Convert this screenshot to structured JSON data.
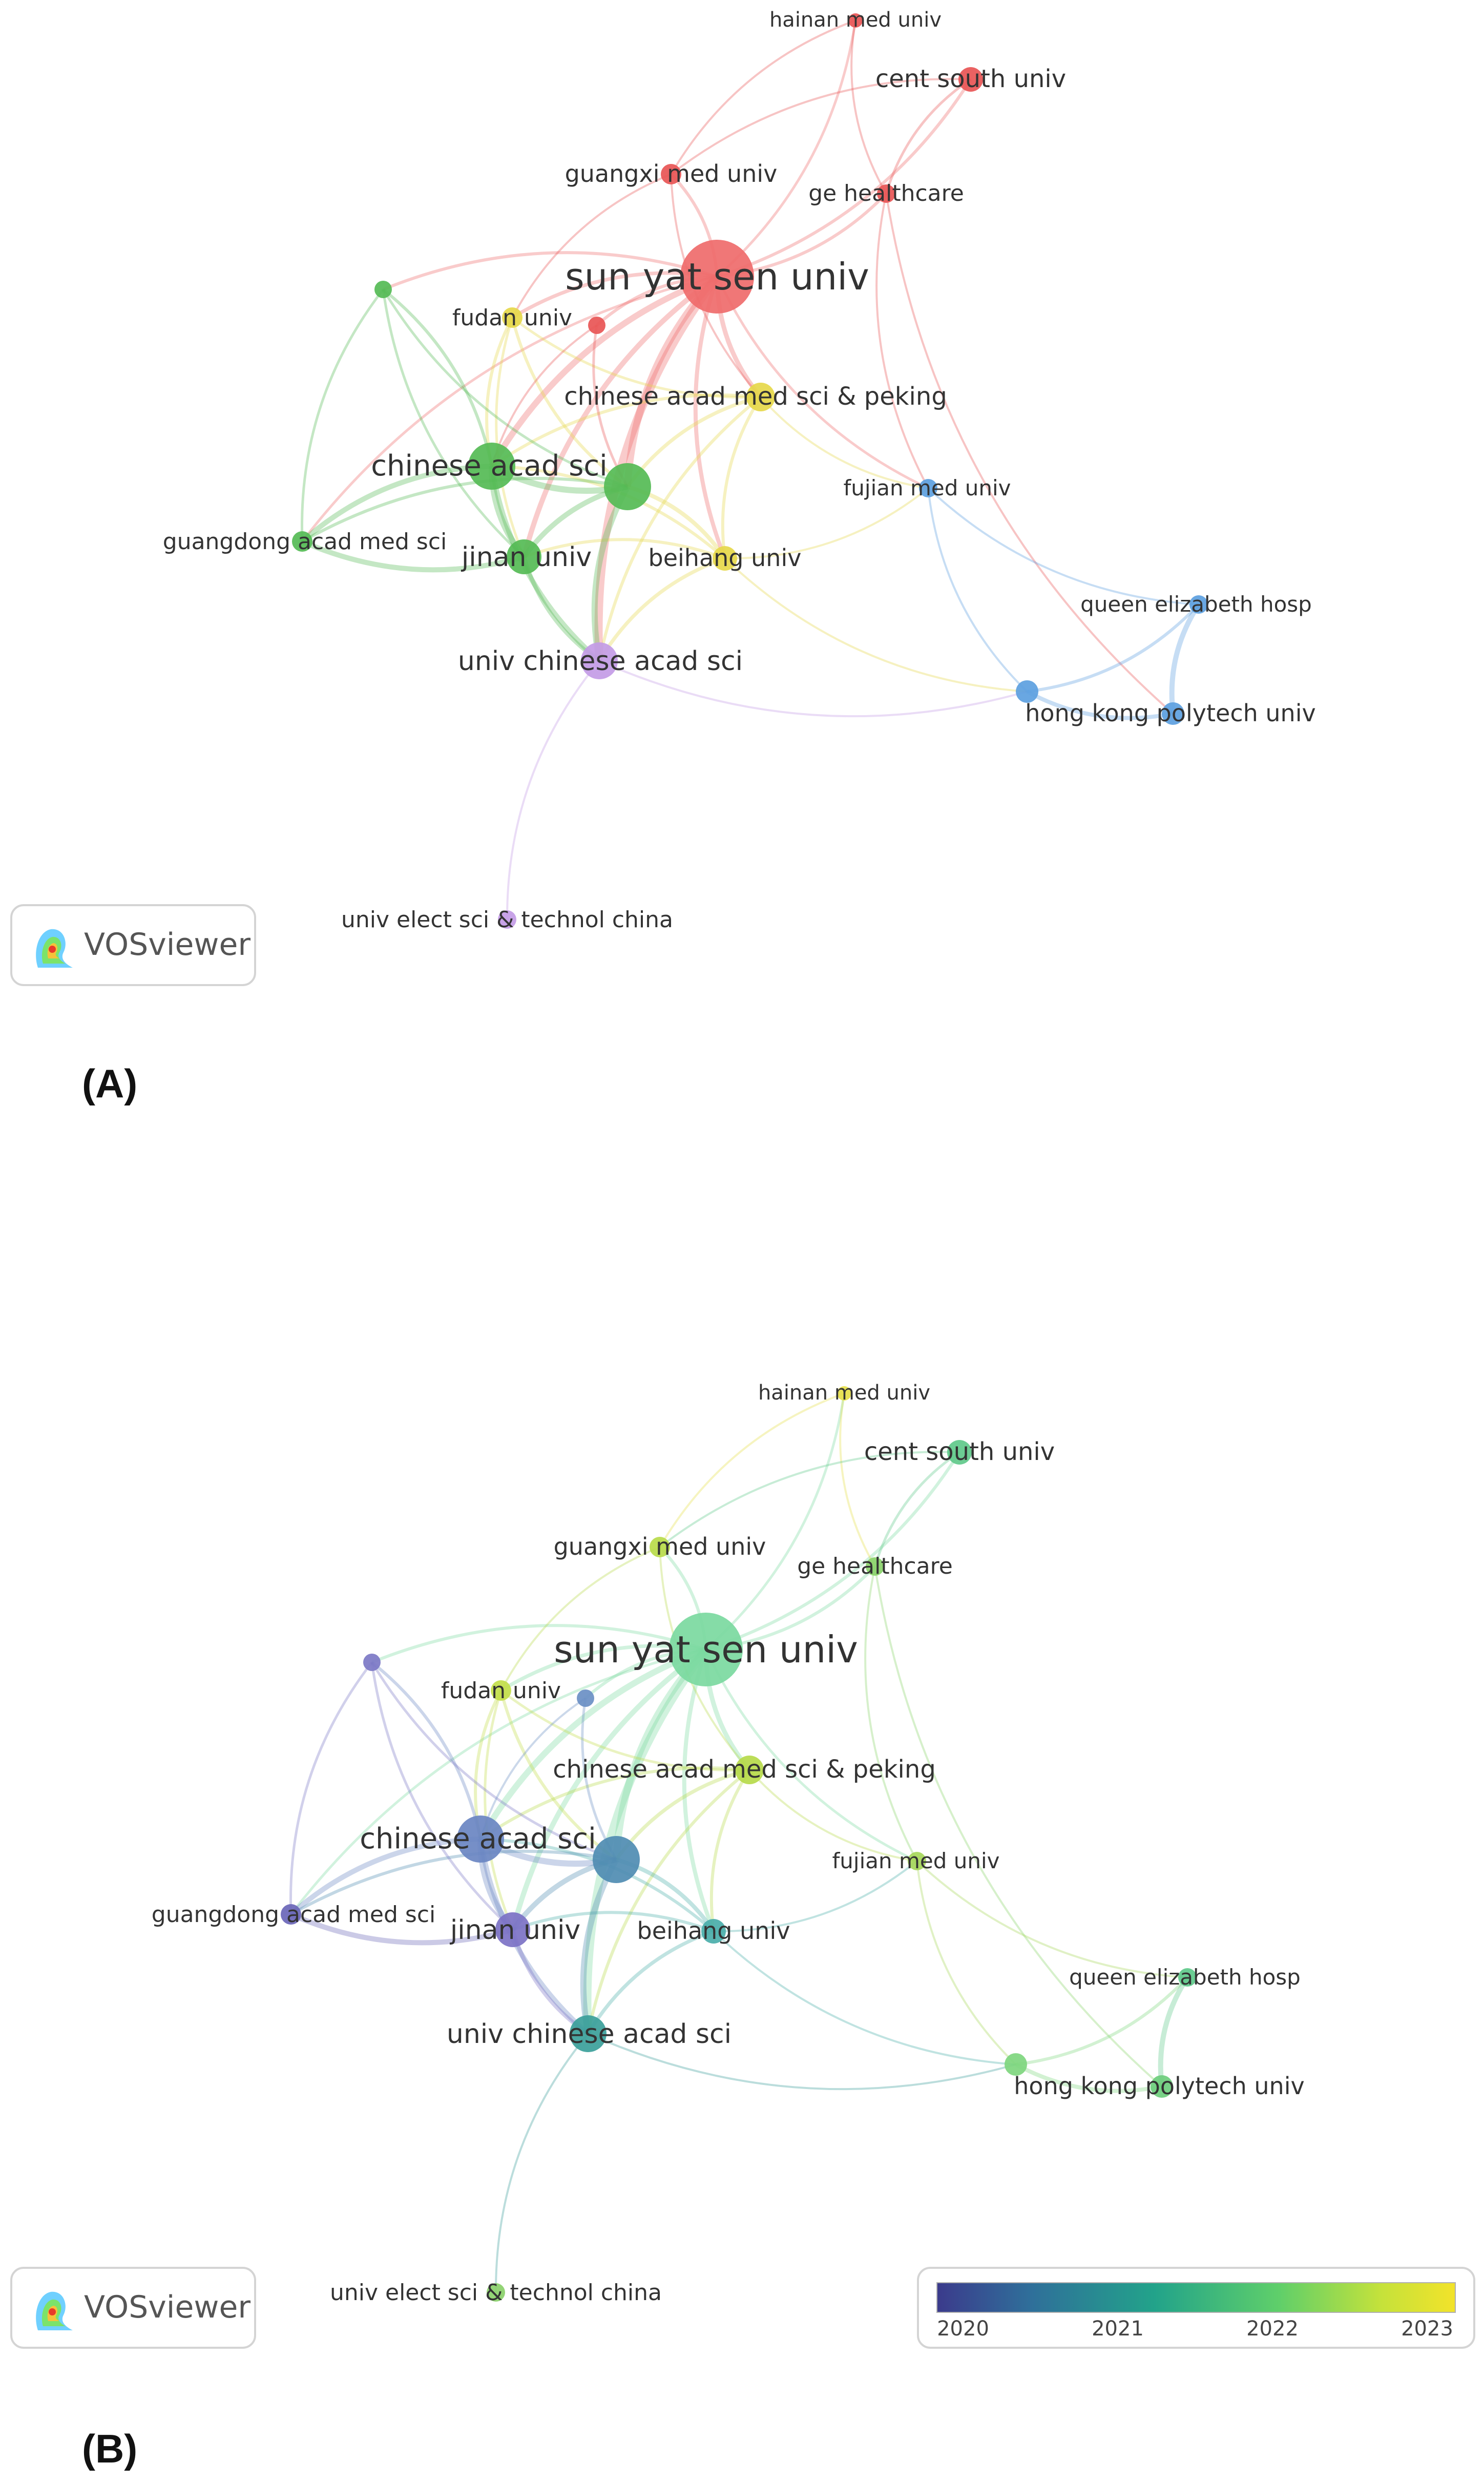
{
  "panels": [
    {
      "label": "(A)",
      "badge": "VOSviewer",
      "nodes": [
        {
          "id": "sysu",
          "label": "sun yat sen univ",
          "color": "#ef6b6b"
        },
        {
          "id": "hainan",
          "label": "hainan med univ",
          "color": "#e85555"
        },
        {
          "id": "centsouth",
          "label": "cent south univ",
          "color": "#e85555"
        },
        {
          "id": "guangxi",
          "label": "guangxi med univ",
          "color": "#e85555"
        },
        {
          "id": "ge",
          "label": "ge healthcare",
          "color": "#e85555"
        },
        {
          "id": "red_small",
          "label": "",
          "color": "#e85555"
        },
        {
          "id": "fudan",
          "label": "fudan univ",
          "color": "#e6d84a"
        },
        {
          "id": "camsp",
          "label": "chinese acad med sci & peking",
          "color": "#e6d84a"
        },
        {
          "id": "beihang",
          "label": "beihang univ",
          "color": "#e6d84a"
        },
        {
          "id": "cas",
          "label": "chinese acad sci",
          "color": "#55bb55"
        },
        {
          "id": "green_mid",
          "label": "",
          "color": "#55bb55"
        },
        {
          "id": "green_small",
          "label": "",
          "color": "#55bb55"
        },
        {
          "id": "gdams",
          "label": "guangdong acad med sci",
          "color": "#55bb55"
        },
        {
          "id": "jinan",
          "label": "jinan univ",
          "color": "#55bb55"
        },
        {
          "id": "ucas",
          "label": "univ chinese acad sci",
          "color": "#c39be6"
        },
        {
          "id": "uestc",
          "label": "univ elect sci & technol china",
          "color": "#c39be6"
        },
        {
          "id": "fujian",
          "label": "fujian med univ",
          "color": "#5c9fe0"
        },
        {
          "id": "qeh",
          "label": "queen elizabeth hosp",
          "color": "#5c9fe0"
        },
        {
          "id": "polyu",
          "label": "hong kong polytech univ",
          "color": "#5c9fe0"
        },
        {
          "id": "blue_small",
          "label": "",
          "color": "#5c9fe0"
        }
      ]
    },
    {
      "label": "(B)",
      "badge": "VOSviewer",
      "nodes": [
        {
          "id": "sysu",
          "label": "sun yat sen univ",
          "color": "#7bd9a0"
        },
        {
          "id": "hainan",
          "label": "hainan med univ",
          "color": "#e6e04a"
        },
        {
          "id": "centsouth",
          "label": "cent south univ",
          "color": "#5fc98a"
        },
        {
          "id": "guangxi",
          "label": "guangxi med univ",
          "color": "#b8db4a"
        },
        {
          "id": "ge",
          "label": "ge healthcare",
          "color": "#8ad36a"
        },
        {
          "id": "red_small",
          "label": "",
          "color": "#6a8fc4"
        },
        {
          "id": "fudan",
          "label": "fudan univ",
          "color": "#c2de4a"
        },
        {
          "id": "camsp",
          "label": "chinese acad med sci & peking",
          "color": "#b6da4a"
        },
        {
          "id": "beihang",
          "label": "beihang univ",
          "color": "#4aaeaa"
        },
        {
          "id": "cas",
          "label": "chinese acad sci",
          "color": "#6a86c2"
        },
        {
          "id": "green_mid",
          "label": "",
          "color": "#4f8cb2"
        },
        {
          "id": "green_small",
          "label": "",
          "color": "#7c78c6"
        },
        {
          "id": "gdams",
          "label": "guangdong acad med sci",
          "color": "#6a66b8"
        },
        {
          "id": "jinan",
          "label": "jinan univ",
          "color": "#7c72c6"
        },
        {
          "id": "ucas",
          "label": "univ chinese acad sci",
          "color": "#3b9f9a"
        },
        {
          "id": "uestc",
          "label": "univ elect sci & technol china",
          "color": "#8ad06a"
        },
        {
          "id": "fujian",
          "label": "fujian med univ",
          "color": "#a6d75a"
        },
        {
          "id": "qeh",
          "label": "queen elizabeth hosp",
          "color": "#5ec98a"
        },
        {
          "id": "polyu",
          "label": "hong kong polytech univ",
          "color": "#6ccd7c"
        },
        {
          "id": "blue_small",
          "label": "",
          "color": "#7ed67e"
        }
      ],
      "colorbar": {
        "ticks": [
          "2020",
          "2021",
          "2022",
          "2023"
        ]
      }
    }
  ]
}
